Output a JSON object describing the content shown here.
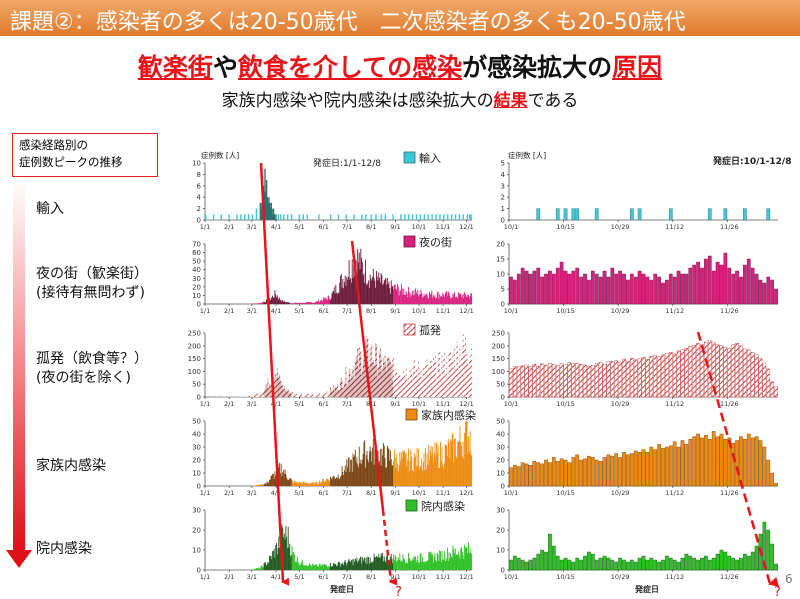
{
  "header": {
    "title": "課題②：感染者の多くは20-50歳代　二次感染者の多くも20-50歳代"
  },
  "subtitle1": {
    "p1": "歓楽街",
    "p2": "や",
    "p3": "飲食を介しての感染",
    "p4": "が感染拡大の",
    "p5": "原因"
  },
  "subtitle2": {
    "p1": "家族内感染や院内感染は感染拡大の",
    "p2": "結果",
    "p3": "である"
  },
  "route": {
    "line1": "感染経路別の",
    "line2": "症例数ピークの推移"
  },
  "rows": [
    {
      "label": "輸入"
    },
    {
      "label": "夜の街（歓楽街）",
      "label2": "(接待有無問わず)"
    },
    {
      "label": "孤発（飲食等？）",
      "label2": "(夜の街を除く)"
    },
    {
      "label": "家族内感染"
    },
    {
      "label": "院内感染"
    }
  ],
  "page_number": "6",
  "colors": {
    "import": "#3ec7d6",
    "nightlife": "#d9207e",
    "sporadic": "#c94040",
    "family": "#ec8b10",
    "hospital": "#2ec025",
    "arrow": "#e8141a",
    "dark_import": "#2f7070",
    "dark_night": "#6a1a3a",
    "dark_sporadic": "#7a2a2a",
    "dark_family": "#7a4512",
    "dark_hospital": "#1e5a1e"
  },
  "chart_data": [
    {
      "type": "bar",
      "panel": "left",
      "title": "発症日:1/1-12/8",
      "ylabel": "症例数 [人]",
      "xlabel": "発症日",
      "xticks": [
        "1/1",
        "2/1",
        "3/1",
        "4/1",
        "5/1",
        "6/1",
        "7/1",
        "8/1",
        "9/1",
        "10/1",
        "11/1",
        "12/1"
      ],
      "series": [
        {
          "name": "輸入",
          "ylim": [
            0,
            10
          ],
          "yticks": [
            0,
            2,
            4,
            6,
            8,
            10
          ],
          "x_day": [
            0,
            10,
            20,
            30,
            40,
            45,
            50,
            55,
            60,
            65,
            70,
            71,
            72,
            73,
            74,
            75,
            76,
            77,
            78,
            79,
            80,
            81,
            82,
            83,
            84,
            85,
            86,
            87,
            88,
            90,
            93,
            96,
            100,
            105,
            110,
            120,
            125,
            130,
            145,
            160,
            170,
            180,
            190,
            200,
            205,
            212,
            218,
            225,
            230,
            240,
            250,
            255,
            260,
            265,
            270,
            275,
            280,
            285,
            290,
            295,
            300,
            305,
            310,
            315,
            320,
            325,
            330,
            335,
            338,
            340
          ],
          "values": [
            1,
            1,
            1,
            1,
            1,
            1,
            1,
            1,
            1,
            2,
            3,
            2,
            3,
            4,
            6,
            5,
            9,
            5,
            7,
            4,
            3,
            4,
            3,
            2,
            3,
            2,
            1,
            2,
            1,
            1,
            1,
            1,
            1,
            1,
            1,
            1,
            1,
            1,
            1,
            1,
            1,
            1,
            1,
            1,
            1,
            1,
            1,
            1,
            1,
            1,
            1,
            1,
            1,
            1,
            1,
            1,
            1,
            1,
            1,
            1,
            1,
            1,
            1,
            1,
            1,
            1,
            1,
            1,
            1,
            1
          ]
        },
        {
          "name": "夜の街",
          "ylim": [
            0,
            70
          ],
          "yticks": [
            0,
            10,
            20,
            30,
            40,
            50,
            60,
            70
          ],
          "curve_keys": [
            [
              0,
              0
            ],
            [
              55,
              0
            ],
            [
              70,
              1
            ],
            [
              82,
              5
            ],
            [
              90,
              12
            ],
            [
              95,
              6
            ],
            [
              100,
              3
            ],
            [
              110,
              1
            ],
            [
              140,
              2
            ],
            [
              160,
              8
            ],
            [
              175,
              28
            ],
            [
              185,
              42
            ],
            [
              193,
              55
            ],
            [
              200,
              45
            ],
            [
              210,
              32
            ],
            [
              220,
              28
            ],
            [
              235,
              20
            ],
            [
              260,
              14
            ],
            [
              280,
              12
            ],
            [
              300,
              11
            ],
            [
              320,
              10
            ],
            [
              342,
              10
            ]
          ]
        },
        {
          "name": "孤発",
          "ylim": [
            0,
            250
          ],
          "yticks": [
            0,
            50,
            100,
            150,
            200,
            250
          ],
          "curve_keys": [
            [
              0,
              0
            ],
            [
              55,
              2
            ],
            [
              70,
              15
            ],
            [
              82,
              60
            ],
            [
              90,
              100
            ],
            [
              96,
              60
            ],
            [
              102,
              30
            ],
            [
              115,
              10
            ],
            [
              150,
              12
            ],
            [
              170,
              40
            ],
            [
              190,
              120
            ],
            [
              205,
              170
            ],
            [
              215,
              160
            ],
            [
              225,
              130
            ],
            [
              245,
              110
            ],
            [
              265,
              105
            ],
            [
              285,
              110
            ],
            [
              300,
              125
            ],
            [
              315,
              140
            ],
            [
              330,
              200
            ],
            [
              342,
              190
            ]
          ]
        },
        {
          "name": "家族内感染",
          "ylim": [
            0,
            50
          ],
          "yticks": [
            0,
            10,
            20,
            30,
            40,
            50
          ],
          "curve_keys": [
            [
              0,
              0
            ],
            [
              60,
              0
            ],
            [
              78,
              2
            ],
            [
              90,
              10
            ],
            [
              97,
              14
            ],
            [
              104,
              8
            ],
            [
              112,
              3
            ],
            [
              140,
              2
            ],
            [
              170,
              8
            ],
            [
              195,
              22
            ],
            [
              210,
              27
            ],
            [
              225,
              24
            ],
            [
              245,
              20
            ],
            [
              265,
              20
            ],
            [
              285,
              22
            ],
            [
              305,
              25
            ],
            [
              320,
              30
            ],
            [
              335,
              40
            ],
            [
              342,
              38
            ]
          ]
        },
        {
          "name": "院内感染",
          "ylim": [
            0,
            30
          ],
          "yticks": [
            0,
            10,
            20,
            30
          ],
          "curve_keys": [
            [
              0,
              0
            ],
            [
              55,
              0
            ],
            [
              70,
              1
            ],
            [
              80,
              4
            ],
            [
              90,
              10
            ],
            [
              95,
              14
            ],
            [
              100,
              18
            ],
            [
              106,
              16
            ],
            [
              112,
              8
            ],
            [
              120,
              4
            ],
            [
              140,
              2
            ],
            [
              170,
              3
            ],
            [
              200,
              5
            ],
            [
              225,
              6
            ],
            [
              250,
              6
            ],
            [
              280,
              6
            ],
            [
              300,
              7
            ],
            [
              320,
              9
            ],
            [
              335,
              10
            ],
            [
              342,
              9
            ]
          ]
        }
      ]
    },
    {
      "type": "bar",
      "panel": "right",
      "title": "発症日:10/1-12/8",
      "ylabel": "症例数 [人]",
      "xticks": [
        "10/1",
        "10/15",
        "10/29",
        "11/12",
        "11/26"
      ],
      "series": [
        {
          "name": "輸入",
          "ylim": [
            0,
            5
          ],
          "yticks": [
            0,
            1,
            2,
            3,
            4,
            5
          ],
          "values": [
            0,
            0,
            0,
            0,
            0,
            0,
            0,
            1,
            0,
            0,
            0,
            0,
            1,
            0,
            1,
            0,
            1,
            1,
            0,
            0,
            0,
            0,
            1,
            0,
            0,
            0,
            0,
            0,
            0,
            0,
            0,
            1,
            0,
            1,
            0,
            0,
            0,
            0,
            0,
            0,
            0,
            1,
            0,
            0,
            0,
            0,
            0,
            0,
            0,
            0,
            0,
            1,
            0,
            0,
            0,
            1,
            0,
            0,
            0,
            0,
            1,
            0,
            0,
            0,
            0,
            0,
            1,
            0,
            0
          ]
        },
        {
          "name": "夜の街",
          "ylim": [
            0,
            20
          ],
          "yticks": [
            0,
            5,
            10,
            15,
            20
          ],
          "values": [
            9,
            8,
            10,
            12,
            11,
            10,
            11,
            12,
            9,
            10,
            11,
            10,
            12,
            14,
            11,
            10,
            11,
            12,
            9,
            10,
            8,
            11,
            10,
            9,
            11,
            9,
            12,
            10,
            11,
            10,
            8,
            10,
            9,
            11,
            10,
            9,
            8,
            10,
            9,
            7,
            8,
            10,
            9,
            11,
            10,
            10,
            12,
            13,
            14,
            12,
            15,
            16,
            11,
            14,
            13,
            17,
            12,
            10,
            11,
            9,
            13,
            15,
            12,
            10,
            8,
            7,
            9,
            8,
            5
          ]
        },
        {
          "name": "孤発",
          "ylim": [
            0,
            250
          ],
          "yticks": [
            0,
            50,
            100,
            150,
            200,
            250
          ],
          "values": [
            110,
            118,
            120,
            122,
            125,
            118,
            128,
            120,
            130,
            125,
            132,
            128,
            122,
            130,
            126,
            135,
            130,
            132,
            128,
            125,
            120,
            124,
            130,
            135,
            128,
            138,
            140,
            142,
            136,
            148,
            140,
            152,
            146,
            150,
            155,
            148,
            160,
            162,
            158,
            165,
            170,
            175,
            168,
            180,
            185,
            190,
            198,
            202,
            210,
            205,
            215,
            220,
            212,
            205,
            200,
            195,
            190,
            205,
            210,
            200,
            188,
            185,
            175,
            165,
            150,
            130,
            110,
            60,
            40
          ]
        },
        {
          "name": "家族内感染",
          "ylim": [
            0,
            50
          ],
          "yticks": [
            0,
            10,
            20,
            30,
            40,
            50
          ],
          "values": [
            14,
            16,
            15,
            18,
            17,
            16,
            19,
            18,
            17,
            20,
            18,
            22,
            19,
            21,
            20,
            18,
            22,
            24,
            20,
            21,
            23,
            22,
            20,
            19,
            22,
            24,
            23,
            25,
            22,
            26,
            24,
            25,
            27,
            26,
            28,
            26,
            30,
            28,
            32,
            29,
            30,
            31,
            34,
            30,
            35,
            32,
            36,
            38,
            40,
            37,
            39,
            36,
            42,
            38,
            40,
            36,
            37,
            33,
            35,
            38,
            36,
            40,
            37,
            38,
            35,
            30,
            20,
            10,
            2
          ]
        },
        {
          "name": "院内感染",
          "ylim": [
            0,
            30
          ],
          "yticks": [
            0,
            10,
            20,
            30
          ],
          "values": [
            5,
            7,
            6,
            5,
            4,
            5,
            6,
            8,
            10,
            9,
            18,
            12,
            7,
            5,
            6,
            5,
            4,
            6,
            5,
            7,
            9,
            8,
            5,
            6,
            7,
            6,
            5,
            4,
            6,
            5,
            4,
            5,
            4,
            6,
            7,
            5,
            6,
            5,
            4,
            5,
            7,
            6,
            5,
            4,
            6,
            8,
            7,
            6,
            5,
            6,
            7,
            5,
            6,
            8,
            10,
            9,
            7,
            6,
            5,
            6,
            8,
            7,
            9,
            12,
            18,
            24,
            20,
            13,
            3
          ]
        }
      ]
    }
  ],
  "arrows": [
    {
      "style": "solid",
      "label": ""
    },
    {
      "style": "solid-dashed",
      "label": "?"
    },
    {
      "style": "dashed",
      "label": "?"
    }
  ]
}
